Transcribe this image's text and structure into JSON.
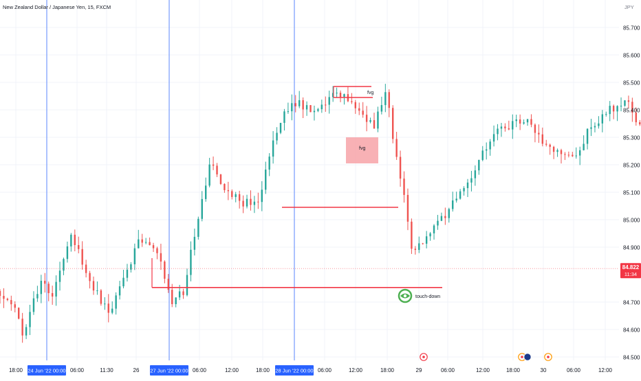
{
  "header": {
    "symbol_title": "New Zealand Dollar / Japanese Yen, 15, FXCM",
    "currency": "JPY"
  },
  "colors": {
    "up": "#26a69a",
    "down": "#ef5350",
    "grid": "#f0f3fa",
    "axis_text": "#131722",
    "session_line": "#2962ff",
    "drawing": "#f23645",
    "fvg_fill": "#f7a3a8",
    "price_badge": "#f23645",
    "date_badge": "#2962ff",
    "touch_icon": "#4caf50"
  },
  "price_badge": {
    "price": "84.822",
    "countdown": "11:34"
  },
  "date_badges": [
    {
      "label": "24 Jun '22   00:00"
    },
    {
      "label": "27 Jun '22   00:00"
    },
    {
      "label": "28 Jun '22   00:00"
    }
  ],
  "annotations": {
    "fvg_upper_label": "fvg",
    "fvg_box_label": "fvg",
    "touch_down_label": "touch-down"
  },
  "chart_data": {
    "type": "candlestick",
    "instrument": "New Zealand Dollar / Japanese Yen",
    "interval": "15",
    "source": "FXCM",
    "y_range": [
      84.45,
      85.78
    ],
    "y_ticks": [
      "85.700",
      "85.600",
      "85.500",
      "85.400",
      "85.300",
      "85.200",
      "85.100",
      "85.000",
      "84.900",
      "84.700",
      "84.600",
      "84.500"
    ],
    "x_ticks": [
      "18:00",
      "06:00",
      "11:30",
      "26",
      "06:00",
      "12:00",
      "18:00",
      "06:00",
      "12:00",
      "18:00",
      "29",
      "06:00",
      "12:00",
      "18:00",
      "30",
      "06:00",
      "12:00"
    ],
    "current_price": 84.822,
    "path_anchors": [
      [
        0,
        84.74
      ],
      [
        8,
        84.68
      ],
      [
        12,
        84.58
      ],
      [
        22,
        84.78
      ],
      [
        28,
        84.72
      ],
      [
        38,
        84.96
      ],
      [
        46,
        84.8
      ],
      [
        58,
        84.66
      ],
      [
        66,
        84.78
      ],
      [
        74,
        84.92
      ],
      [
        84,
        84.88
      ],
      [
        92,
        84.7
      ],
      [
        98,
        84.74
      ],
      [
        104,
        84.95
      ],
      [
        112,
        85.2
      ],
      [
        120,
        85.12
      ],
      [
        130,
        85.06
      ],
      [
        138,
        85.06
      ],
      [
        146,
        85.3
      ],
      [
        156,
        85.44
      ],
      [
        168,
        85.38
      ],
      [
        180,
        85.46
      ],
      [
        192,
        85.4
      ],
      [
        200,
        85.34
      ],
      [
        206,
        85.48
      ],
      [
        210,
        85.3
      ],
      [
        216,
        85.1
      ],
      [
        220,
        84.9
      ],
      [
        226,
        84.92
      ],
      [
        234,
        84.98
      ],
      [
        242,
        85.06
      ],
      [
        252,
        85.16
      ],
      [
        262,
        85.3
      ],
      [
        272,
        85.34
      ],
      [
        282,
        85.36
      ],
      [
        294,
        85.26
      ],
      [
        306,
        85.22
      ],
      [
        316,
        85.34
      ],
      [
        326,
        85.4
      ],
      [
        334,
        85.44
      ],
      [
        344,
        85.32
      ],
      [
        352,
        85.3
      ],
      [
        362,
        85.26
      ],
      [
        372,
        85.34
      ],
      [
        380,
        85.24
      ],
      [
        390,
        85.3
      ],
      [
        398,
        85.4
      ],
      [
        406,
        85.3
      ],
      [
        414,
        85.08
      ],
      [
        420,
        85.14
      ],
      [
        430,
        85.2
      ],
      [
        438,
        85.2
      ],
      [
        444,
        85.42
      ],
      [
        450,
        85.62
      ],
      [
        458,
        85.42
      ],
      [
        466,
        85.56
      ],
      [
        474,
        85.54
      ],
      [
        480,
        85.62
      ],
      [
        486,
        85.44
      ],
      [
        494,
        85.38
      ],
      [
        500,
        85.48
      ],
      [
        506,
        85.3
      ],
      [
        514,
        85.18
      ],
      [
        522,
        85.2
      ],
      [
        530,
        85.1
      ],
      [
        538,
        85.06
      ],
      [
        544,
        84.98
      ],
      [
        550,
        85.04
      ],
      [
        556,
        84.84
      ],
      [
        564,
        84.92
      ],
      [
        572,
        84.88
      ],
      [
        578,
        84.84
      ],
      [
        584,
        85.02
      ],
      [
        587,
        84.82
      ]
    ],
    "markers": {
      "session_lines": [
        "24 Jun '22 00:00",
        "27 Jun '22 00:00",
        "28 Jun '22 00:00"
      ],
      "horizontal_lines": [
        {
          "price": 84.753,
          "note": "low level"
        },
        {
          "price": 85.045,
          "note": "level"
        },
        {
          "price": 85.485,
          "note": "fvg"
        },
        {
          "price": 85.445,
          "note": "fvg"
        }
      ],
      "fvg_zone": {
        "price_top": 85.3,
        "price_bottom": 85.205
      }
    },
    "grid": true,
    "legend": "none"
  }
}
